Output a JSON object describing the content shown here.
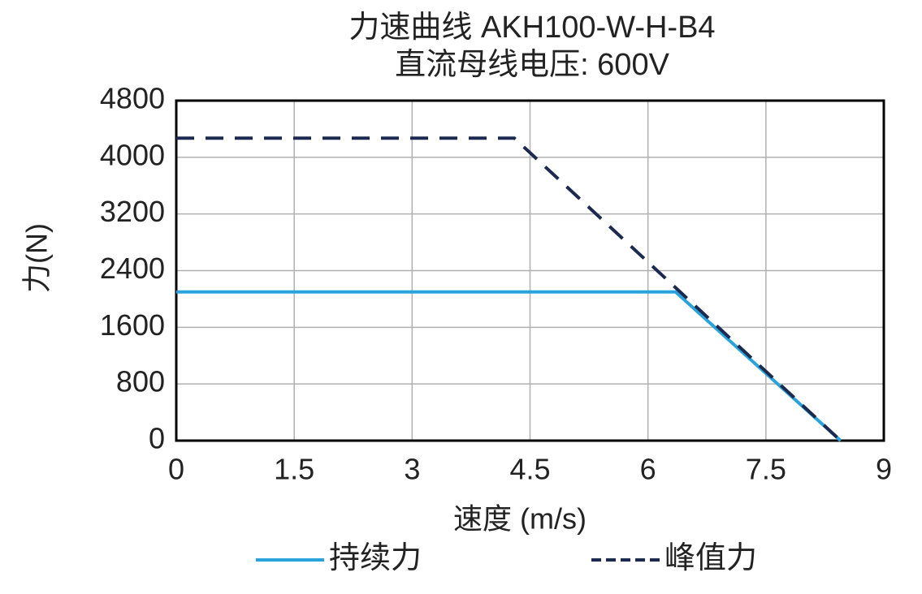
{
  "chart_data": {
    "type": "line",
    "title": "力速曲线 AKH100-W-H-B4",
    "subtitle": "直流母线电压: 600V",
    "x_label": "速度 (m/s)",
    "y_label": "力(N)",
    "xlim": [
      0,
      9
    ],
    "xticks": [
      0,
      1.5,
      3,
      4.5,
      6,
      7.5,
      9
    ],
    "ylim": [
      0,
      4800
    ],
    "yticks": [
      0,
      800,
      1600,
      2400,
      3200,
      4000,
      4800
    ],
    "grid": true,
    "legend": "bottom",
    "series": [
      {
        "name": "持续力",
        "color": "#2aa3dc",
        "dashed": false,
        "x": [
          0,
          6.35,
          8.45
        ],
        "values": [
          2100,
          2100,
          0
        ]
      },
      {
        "name": "峰值力",
        "color": "#1b2a4e",
        "dashed": true,
        "x": [
          0,
          4.3,
          8.45
        ],
        "values": [
          4270,
          4270,
          0
        ]
      }
    ]
  }
}
